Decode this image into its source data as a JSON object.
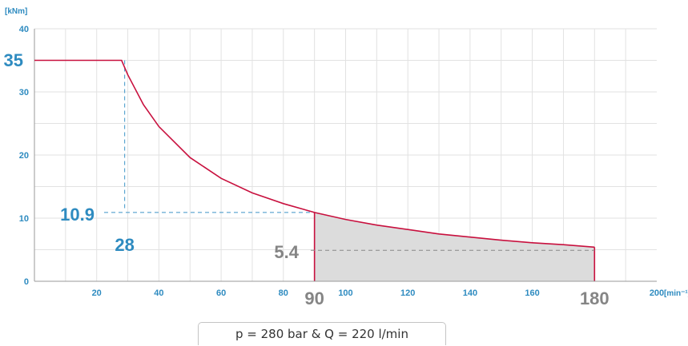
{
  "colors": {
    "curve": "#c8103e",
    "axis_text": "#2e8bc0",
    "highlight_gray": "#858585",
    "grid": "#e2e2e2",
    "fill": "#dcdcdc",
    "dash_blue": "#3c94c7",
    "dash_gray": "#888888"
  },
  "chart_data": {
    "type": "line",
    "y_unit_label": "[kNm]",
    "x_unit_label": "[min⁻¹]",
    "xlim": [
      0,
      200
    ],
    "ylim": [
      0,
      40
    ],
    "x_ticks": [
      20,
      40,
      60,
      80,
      100,
      120,
      140,
      160,
      200
    ],
    "x_tick_labels": [
      "20",
      "40",
      "60",
      "80",
      "100",
      "120",
      "140",
      "160",
      "200"
    ],
    "y_ticks": [
      0,
      10,
      20,
      30,
      40
    ],
    "y_tick_labels": [
      "0",
      "10",
      "20",
      "30",
      "40"
    ],
    "grid": true,
    "series": [
      {
        "x": [
          0,
          28,
          30,
          35,
          40,
          50,
          60,
          70,
          80,
          90,
          100,
          110,
          120,
          130,
          140,
          150,
          160,
          170,
          180
        ],
        "y": [
          35,
          35,
          32.7,
          28,
          24.5,
          19.6,
          16.3,
          14.0,
          12.3,
          10.9,
          9.8,
          8.9,
          8.2,
          7.5,
          7.0,
          6.5,
          6.1,
          5.8,
          5.4
        ]
      }
    ],
    "shaded_region": {
      "x_from": 90,
      "x_to": 180
    },
    "annotations": {
      "max_torque": {
        "value": 35,
        "label": "35"
      },
      "corner_speed": {
        "value": 28,
        "label": "28"
      },
      "torque_at_90": {
        "value": 10.9,
        "label": "10.9"
      },
      "speed_90": {
        "value": 90,
        "label": "90"
      },
      "torque_at_180": {
        "value": 5.4,
        "label": "5.4"
      },
      "speed_180": {
        "value": 180,
        "label": "180"
      }
    }
  },
  "footer": {
    "note": "p = 280 bar & Q = 220 l/min"
  }
}
